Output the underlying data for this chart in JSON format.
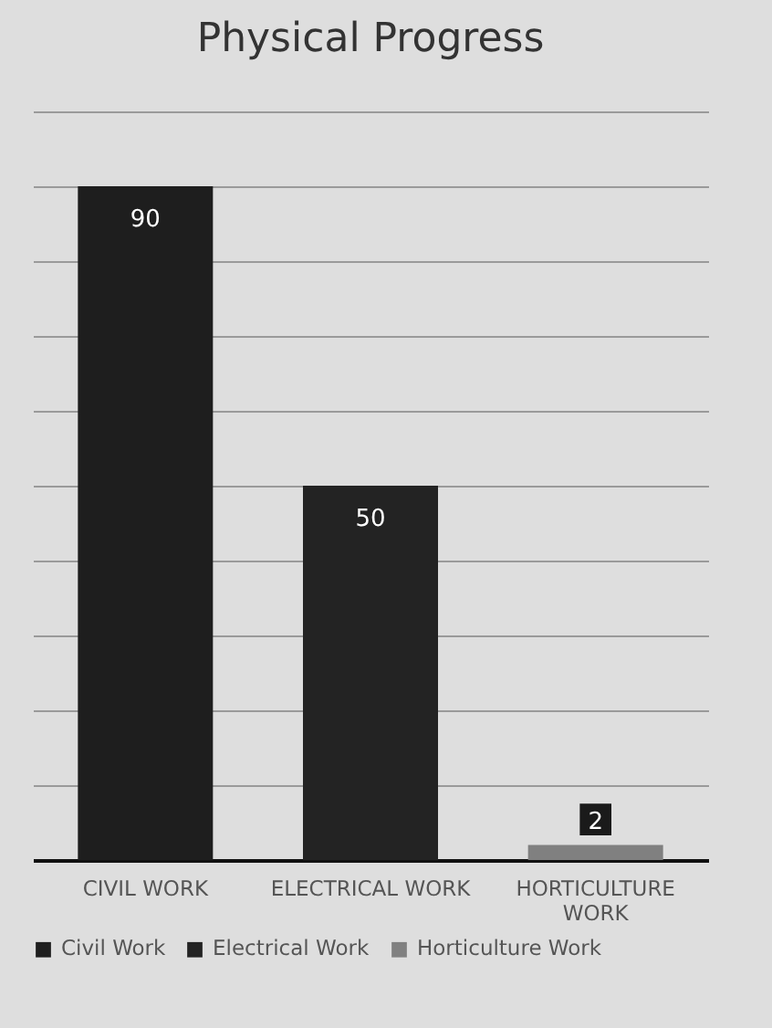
{
  "chart_data": {
    "type": "bar",
    "title": "Physical Progress",
    "categories": [
      "CIVIL WORK",
      "ELECTRICAL WORK",
      "HORTICULTURE WORK"
    ],
    "series": [
      {
        "name": "Civil Work",
        "color": "#1e1e1e",
        "values": [
          90,
          null,
          null
        ]
      },
      {
        "name": "Electrical Work",
        "color": "#232323",
        "values": [
          null,
          50,
          null
        ]
      },
      {
        "name": "Horticulture Work",
        "color": "#808080",
        "values": [
          null,
          null,
          2
        ]
      }
    ],
    "ylim": [
      0,
      100
    ],
    "yticks": [
      {
        "value": 0,
        "label": null
      },
      {
        "value": 10,
        "label": null
      },
      {
        "value": 20,
        "label": null
      },
      {
        "value": 30,
        "label": null
      },
      {
        "value": 40,
        "label": null
      },
      {
        "value": 50,
        "label": null
      },
      {
        "value": 60,
        "label": null
      },
      {
        "value": 70,
        "label": null
      },
      {
        "value": 80,
        "label": null
      },
      {
        "value": 90,
        "label": null
      },
      {
        "value": 100,
        "label": null
      }
    ],
    "grid": "y",
    "tick_labels": "x",
    "data_labels": true,
    "legend": "bottom"
  }
}
